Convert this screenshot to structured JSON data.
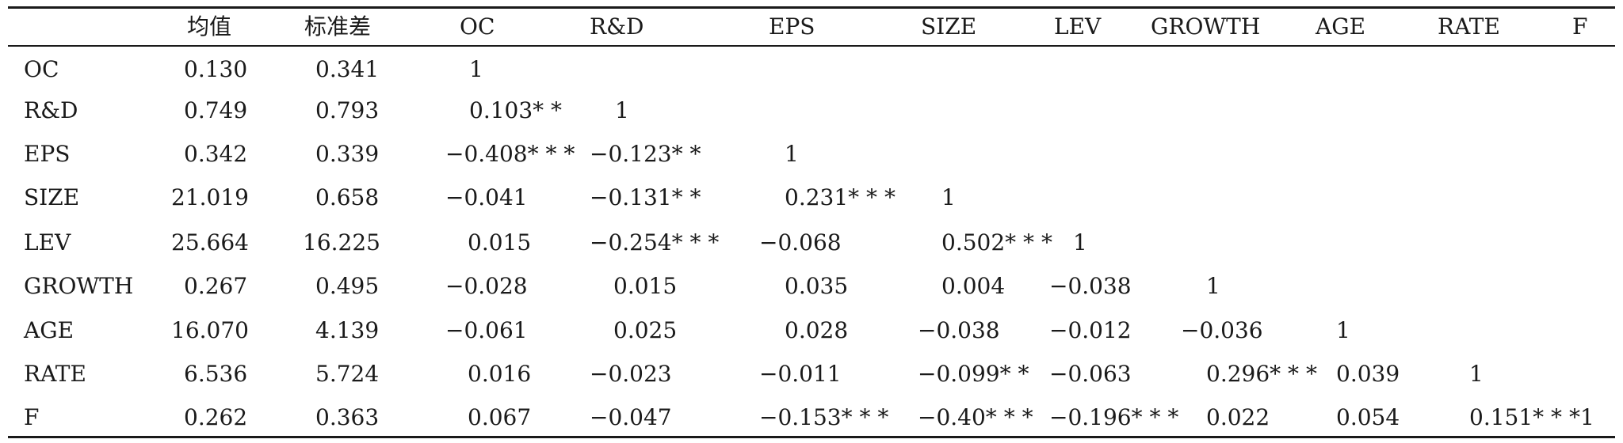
{
  "header": [
    "均值",
    "标准差",
    "OC",
    "R&D",
    "EPS",
    "SIZE",
    "LEV",
    "GROWTH",
    "AGE",
    "RATE",
    "F"
  ],
  "rows": [
    {
      "label": "OC",
      "cells": [
        "0.130",
        "0.341",
        "1"
      ]
    },
    {
      "label": "R&D",
      "cells": [
        "0.749",
        "0.793",
        "0.103* *",
        "1"
      ]
    },
    {
      "label": "EPS",
      "cells": [
        "0.342",
        "0.339",
        "−0.408* * *",
        "−0.123* *",
        "1"
      ]
    },
    {
      "label": "SIZE",
      "cells": [
        "21.019",
        "0.658",
        "−0.041",
        "−0.131* *",
        "0.231* * *",
        "1"
      ]
    },
    {
      "label": "LEV",
      "cells": [
        "25.664",
        "16.225",
        "0.015",
        "−0.254* * *",
        "−0.068",
        "0.502* * *",
        "1"
      ]
    },
    {
      "label": "GROWTH",
      "cells": [
        "0.267",
        "0.495",
        "−0.028",
        "0.015",
        "0.035",
        "0.004",
        "−0.038",
        "1"
      ]
    },
    {
      "label": "AGE",
      "cells": [
        "16.070",
        "4.139",
        "−0.061",
        "0.025",
        "0.028",
        "−0.038",
        "−0.012",
        "−0.036",
        "1"
      ]
    },
    {
      "label": "RATE",
      "cells": [
        "6.536",
        "5.724",
        "0.016",
        "−0.023",
        "−0.011",
        "−0.099* *",
        "−0.063",
        "0.296* * *",
        "0.039",
        "1"
      ]
    },
    {
      "label": "F",
      "cells": [
        "0.262",
        "0.363",
        "0.067",
        "−0.047",
        "−0.153* * *",
        "−0.40* * *",
        "−0.196* * *",
        "0.022",
        "0.054",
        "0.151* * *1"
      ]
    }
  ]
}
